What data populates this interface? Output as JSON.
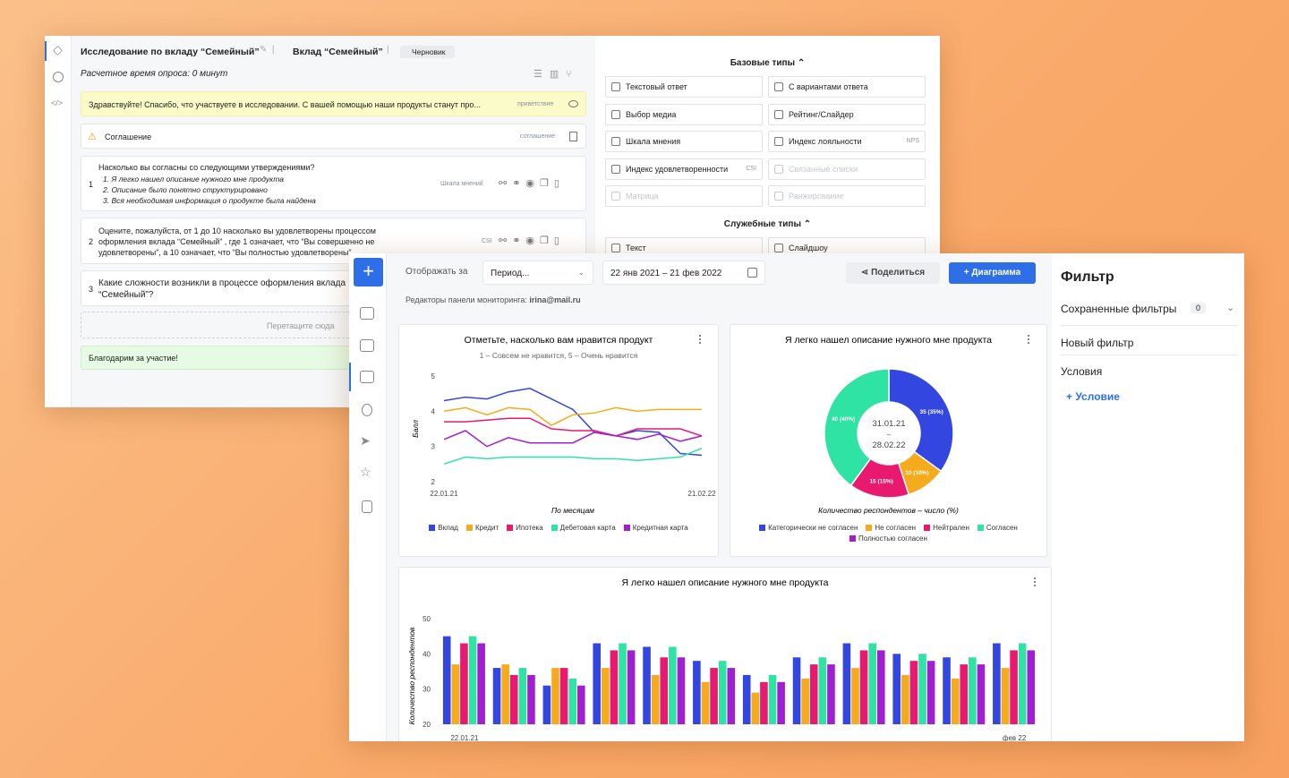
{
  "editor": {
    "title": "Исследование по вкладу “Семейный”",
    "product": "Вклад “Семейный”",
    "status": "Черновик",
    "time": "Расчетное время опроса: 0 минут",
    "greeting": {
      "text": "Здравствуйте! Спасибо, что участвуете в исследовании. С вашей помощью наши продукты станут про...",
      "tag": "приветствие"
    },
    "agreement": {
      "text": "Соглашение",
      "tag": "соглашение"
    },
    "questions": [
      {
        "number": "1",
        "text": "Насколько вы согласны со следующими утверждениями?",
        "items": [
          "1. Я легко нашел описание нужного мне продукта",
          "2. Описание было понятно структурировано",
          "3. Вся необходимая информация о продукте была найдена"
        ],
        "tag": "Шкала мнений"
      },
      {
        "number": "2",
        "text": "Оцените, пожалуйста, от 1 до 10 насколько вы удовлетворены процессом оформления вклада “Семейный” , где 1 означает, что “Вы совершенно не удовлетворены”, а 10 означает, что “Вы полностью удовлетворены”",
        "tag": "CSI"
      },
      {
        "number": "3",
        "text": "Какие сложности возникли в процессе оформления вклада “Семейный”?"
      }
    ],
    "drop": "Перетащите сюда",
    "thanks": "Благодарим за участие!"
  },
  "types": {
    "basic_title": "Базовые типы",
    "basic": [
      {
        "label": "Текстовый ответ"
      },
      {
        "label": "С вариантами ответа"
      },
      {
        "label": "Выбор медиа"
      },
      {
        "label": "Рейтинг/Слайдер"
      },
      {
        "label": "Шкала мнения"
      },
      {
        "label": "Индекс лояльности",
        "badge": "NPS"
      },
      {
        "label": "Индекс удовлетворенности",
        "badge": "CSI"
      },
      {
        "label": "Связанные списки",
        "disabled": true
      },
      {
        "label": "Матрица",
        "disabled": true
      },
      {
        "label": "Ранжирование",
        "disabled": true
      }
    ],
    "service_title": "Служебные типы",
    "service": [
      "Текст",
      "Слайдшоу"
    ]
  },
  "dashboard": {
    "period_label": "Отображать за",
    "period": "Период...",
    "dates": "22 янв 2021 – 21 фев 2022",
    "share": "Поделиться",
    "add": "+ Диаграмма",
    "editors_label": "Редакторы панели мониторинга:",
    "editors": "irina@mail.ru"
  },
  "filter": {
    "title": "Фильтр",
    "saved": "Сохраненные фильтры",
    "saved_count": "0",
    "new": "Новый фильтр",
    "conditions": "Условия",
    "add_condition": "Условие"
  },
  "chart_data": [
    {
      "type": "line",
      "title": "Отметьте, насколько вам нравится продукт",
      "subtitle": "1 – Совсем не нравится, 5 – Очень нравится",
      "xlabel": "По месяцам",
      "ylabel": "Балл",
      "categories": [
        "22.01.21",
        null,
        null,
        null,
        null,
        null,
        null,
        null,
        null,
        null,
        null,
        null,
        "21.02.22"
      ],
      "ylim": [
        2,
        5
      ],
      "yticks": [
        2,
        3,
        4,
        5
      ],
      "grid": false,
      "series": [
        {
          "name": "Вклад",
          "color": "#3347e0",
          "values": [
            4.3,
            4.4,
            4.35,
            4.55,
            4.65,
            4.35,
            4.05,
            3.4,
            3.3,
            3.45,
            3.4,
            2.8,
            2.75
          ]
        },
        {
          "name": "Кредит",
          "color": "#f5ab1c",
          "values": [
            4.0,
            4.1,
            3.9,
            4.1,
            4.05,
            3.6,
            3.9,
            3.95,
            4.1,
            4.0,
            4.05,
            4.05,
            4.05
          ]
        },
        {
          "name": "Ипотека",
          "color": "#e8196e",
          "values": [
            3.7,
            3.7,
            3.75,
            3.8,
            3.8,
            3.5,
            3.45,
            3.45,
            3.3,
            3.5,
            3.5,
            3.5,
            3.3
          ]
        },
        {
          "name": "Дебетовая карта",
          "color": "#2ee3a3",
          "values": [
            2.5,
            2.7,
            2.65,
            2.7,
            2.7,
            2.7,
            2.7,
            2.65,
            2.65,
            2.6,
            2.65,
            2.7,
            2.95
          ]
        },
        {
          "name": "Кредитная карта",
          "color": "#a01fd0",
          "values": [
            3.2,
            3.45,
            3.0,
            3.25,
            3.1,
            3.1,
            3.1,
            3.4,
            3.3,
            3.2,
            3.35,
            3.15,
            3.3
          ]
        }
      ]
    },
    {
      "type": "pie",
      "title": "Я легко нашел описание нужного мне продукта",
      "center_label": {
        "from": "31.01.21",
        "separator": "–",
        "to": "28.02.22"
      },
      "xlabel": "Количество респондентов – число (%)",
      "categories": [
        "Категорически не согласен",
        "Не согласен",
        "Нейтрален",
        "Согласен",
        "Полностью согласен"
      ],
      "values": [
        35,
        10,
        15,
        40,
        null
      ],
      "value_labels": [
        "35 (35%)",
        "10 (10%)",
        "15 (15%)",
        "40 (40%)",
        null
      ],
      "colors": [
        "#3347e0",
        "#f5ab1c",
        "#e8196e",
        "#2ee3a3",
        "#a01fd0"
      ]
    },
    {
      "type": "bar",
      "title": "Я легко нашел описание нужного мне продукта",
      "ylabel": "Количество респондентов",
      "categories": [
        "22.01.21",
        null,
        null,
        null,
        null,
        null,
        null,
        null,
        null,
        null,
        null,
        "фев 22"
      ],
      "ylim": [
        20,
        50
      ],
      "yticks": [
        20,
        30,
        40,
        50
      ],
      "grid": false,
      "series": [
        {
          "name": "Категорически не согласен",
          "color": "#3347e0",
          "values": [
            45,
            36,
            31,
            43,
            42,
            38,
            34,
            39,
            43,
            40,
            39,
            43
          ]
        },
        {
          "name": "Не согласен",
          "color": "#f5ab1c",
          "values": [
            37,
            37,
            36,
            36,
            34,
            32,
            29,
            33,
            36,
            34,
            33,
            36
          ]
        },
        {
          "name": "Нейтрален",
          "color": "#e8196e",
          "values": [
            43,
            34,
            36,
            41,
            39,
            36,
            32,
            37,
            41,
            38,
            37,
            41
          ]
        },
        {
          "name": "Согласен",
          "color": "#2ee3a3",
          "values": [
            45,
            36,
            33,
            43,
            42,
            38,
            34,
            39,
            43,
            40,
            39,
            43
          ]
        },
        {
          "name": "Полностью согласен",
          "color": "#a01fd0",
          "values": [
            43,
            34,
            31,
            41,
            39,
            36,
            32,
            37,
            41,
            38,
            37,
            41
          ]
        }
      ]
    }
  ]
}
